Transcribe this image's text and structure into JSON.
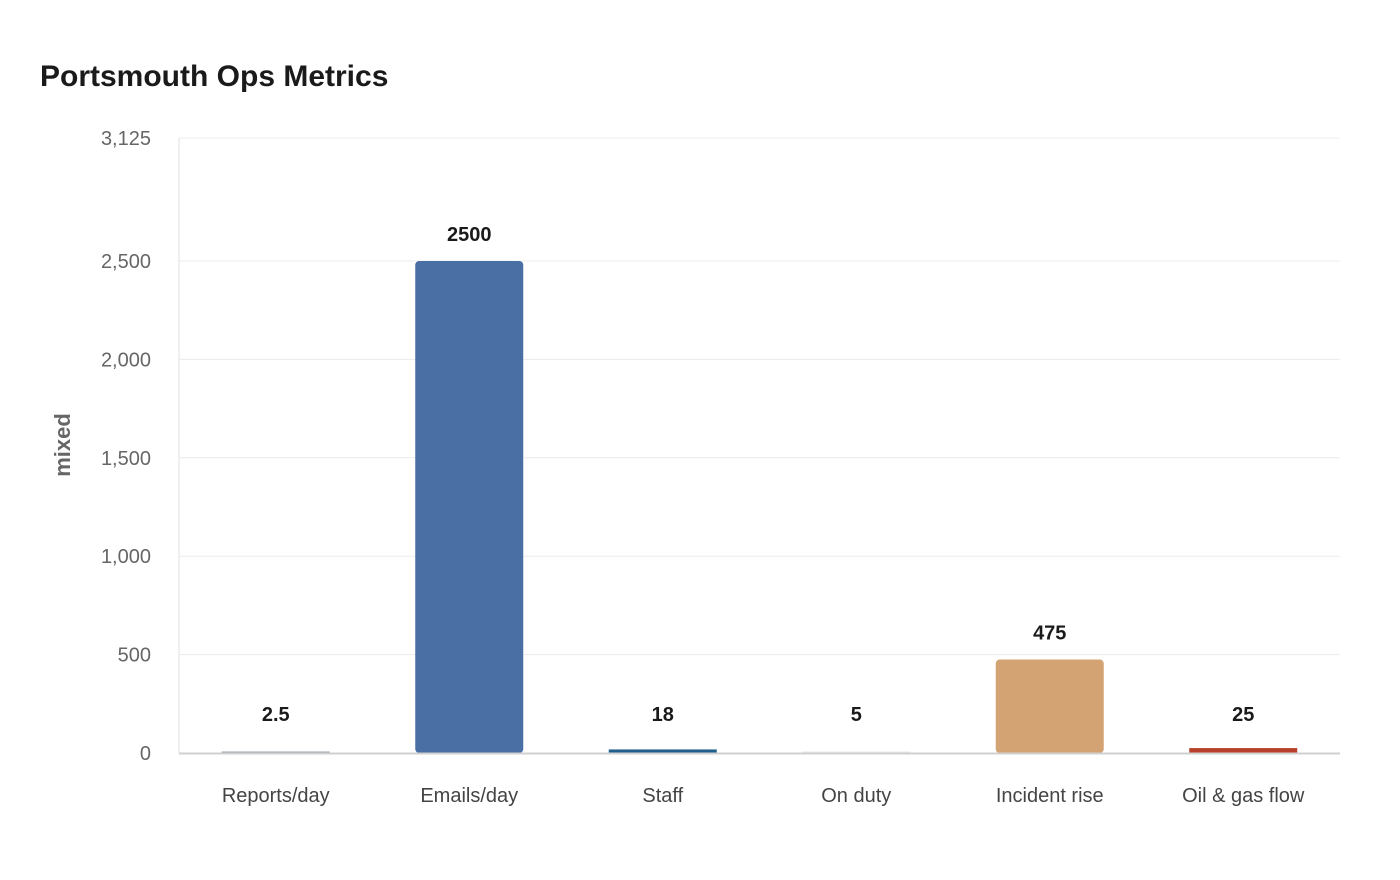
{
  "chart_data": {
    "type": "bar",
    "title": "Portsmouth Ops Metrics",
    "xlabel": "",
    "ylabel": "mixed",
    "ylim": [
      0,
      3125
    ],
    "yticks": [
      0,
      500,
      1000,
      1500,
      2000,
      2500,
      3125
    ],
    "ytick_labels": [
      "0",
      "500",
      "1,000",
      "1,500",
      "2,000",
      "2,500",
      "3,125"
    ],
    "grid": true,
    "categories": [
      "Reports/day",
      "Emails/day",
      "Staff",
      "On duty",
      "Incident rise",
      "Oil & gas flow"
    ],
    "values": [
      2.5,
      2500,
      18,
      5,
      475,
      25
    ],
    "data_labels": [
      "2.5",
      "2500",
      "18",
      "5",
      "475",
      "25"
    ],
    "colors": [
      "#9aa4ae",
      "#4a6fa5",
      "#1f5f8b",
      "#e8e8e8",
      "#d4a373",
      "#b8402a"
    ]
  }
}
